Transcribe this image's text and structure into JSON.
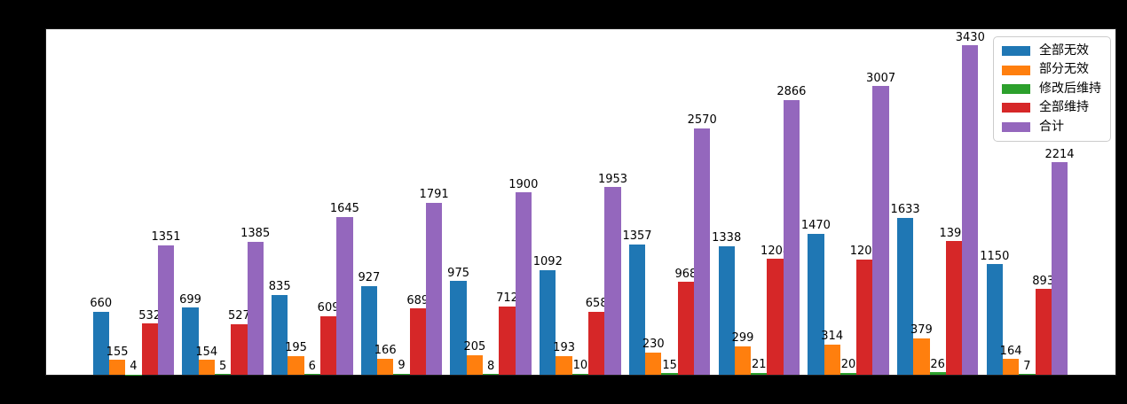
{
  "figure": {
    "background_color": "#000000",
    "plot_background_color": "#ffffff",
    "title": "",
    "axis_tick_labels_visible": false
  },
  "legend": {
    "position": "upper right",
    "border_color": "#cccccc",
    "background_color": "#ffffff"
  },
  "chart_data": {
    "type": "bar",
    "grouped": true,
    "title": "",
    "xlabel": "",
    "ylabel": "",
    "grid": false,
    "value_labels": true,
    "ylim": [
      0,
      3600
    ],
    "legend_position": "upper right",
    "categories": [
      "",
      "",
      "",
      "",
      "",
      "",
      "",
      "",
      "",
      "",
      ""
    ],
    "series": [
      {
        "name": "全部无效",
        "color": "#1f77b4",
        "values": [
          660,
          699,
          835,
          927,
          975,
          1092,
          1357,
          1338,
          1470,
          1633,
          1150
        ]
      },
      {
        "name": "部分无效",
        "color": "#ff7f0e",
        "values": [
          155,
          154,
          195,
          166,
          205,
          193,
          230,
          299,
          314,
          379,
          164
        ]
      },
      {
        "name": "修改后维持",
        "color": "#2ca02c",
        "values": [
          4,
          5,
          6,
          9,
          8,
          10,
          15,
          21,
          20,
          26,
          7
        ]
      },
      {
        "name": "全部维持",
        "color": "#d62728",
        "values": [
          532,
          527,
          609,
          689,
          712,
          658,
          968,
          1208,
          1203,
          1392,
          893
        ]
      },
      {
        "name": "合计",
        "color": "#9467bd",
        "values": [
          1351,
          1385,
          1645,
          1791,
          1900,
          1953,
          2570,
          2866,
          3007,
          3430,
          2214
        ]
      }
    ]
  }
}
